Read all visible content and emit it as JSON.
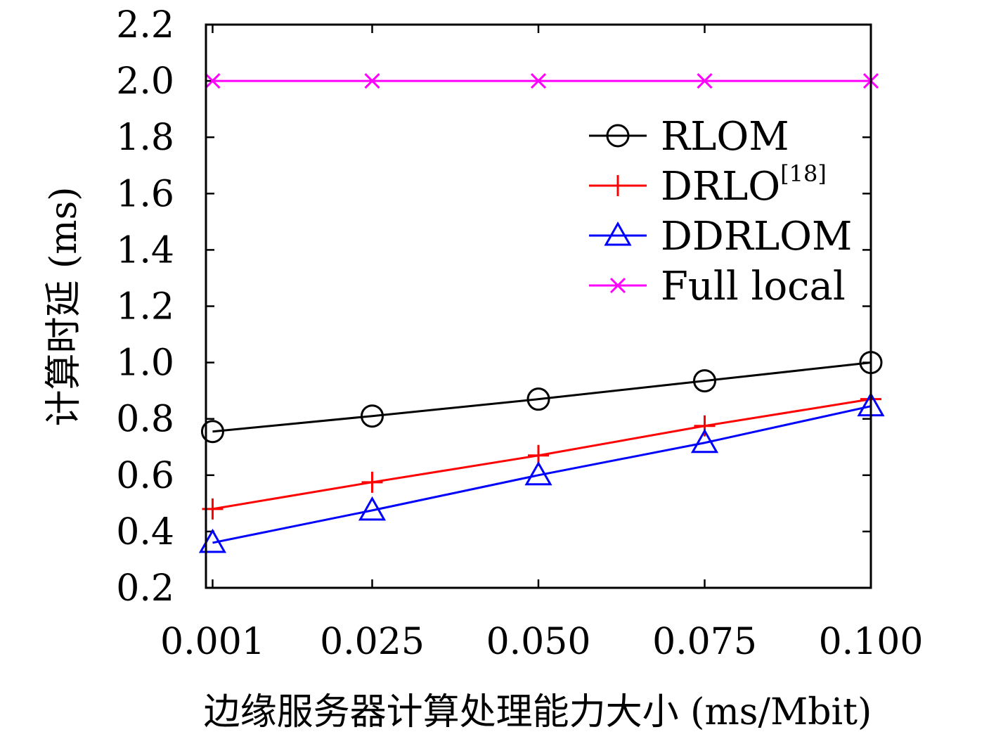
{
  "chart_data": {
    "type": "line",
    "xlabel": "边缘服务器计算处理能力大小 (ms/Mbit)",
    "ylabel": "计算时延 (ms)",
    "x": [
      0.001,
      0.025,
      0.05,
      0.075,
      0.1
    ],
    "x_tick_labels": [
      "0.001",
      "0.025",
      "0.050",
      "0.075",
      "0.100"
    ],
    "xlim": [
      0.0,
      0.1
    ],
    "ylim": [
      0.2,
      2.2
    ],
    "y_ticks": [
      0.2,
      0.4,
      0.6,
      0.8,
      1.0,
      1.2,
      1.4,
      1.6,
      1.8,
      2.0,
      2.2
    ],
    "y_tick_labels": [
      "0.2",
      "0.4",
      "0.6",
      "0.8",
      "1.0",
      "1.2",
      "1.4",
      "1.6",
      "1.8",
      "2.0",
      "2.2"
    ],
    "grid": false,
    "legend_position": "top-right",
    "series": [
      {
        "name": "RLOM",
        "name_sup": "",
        "color": "#000000",
        "marker": "circle",
        "values": [
          0.755,
          0.81,
          0.87,
          0.935,
          1.0
        ]
      },
      {
        "name": "DRLO",
        "name_sup": "[18]",
        "color": "#ff0000",
        "marker": "plus",
        "values": [
          0.48,
          0.575,
          0.67,
          0.775,
          0.87
        ]
      },
      {
        "name": "DDRLOM",
        "name_sup": "",
        "color": "#0000ff",
        "marker": "triangle",
        "values": [
          0.36,
          0.475,
          0.6,
          0.715,
          0.845
        ]
      },
      {
        "name": "Full local",
        "name_sup": "",
        "color": "#ff00ff",
        "marker": "x",
        "values": [
          2.0,
          2.0,
          2.0,
          2.0,
          2.0
        ]
      }
    ]
  }
}
